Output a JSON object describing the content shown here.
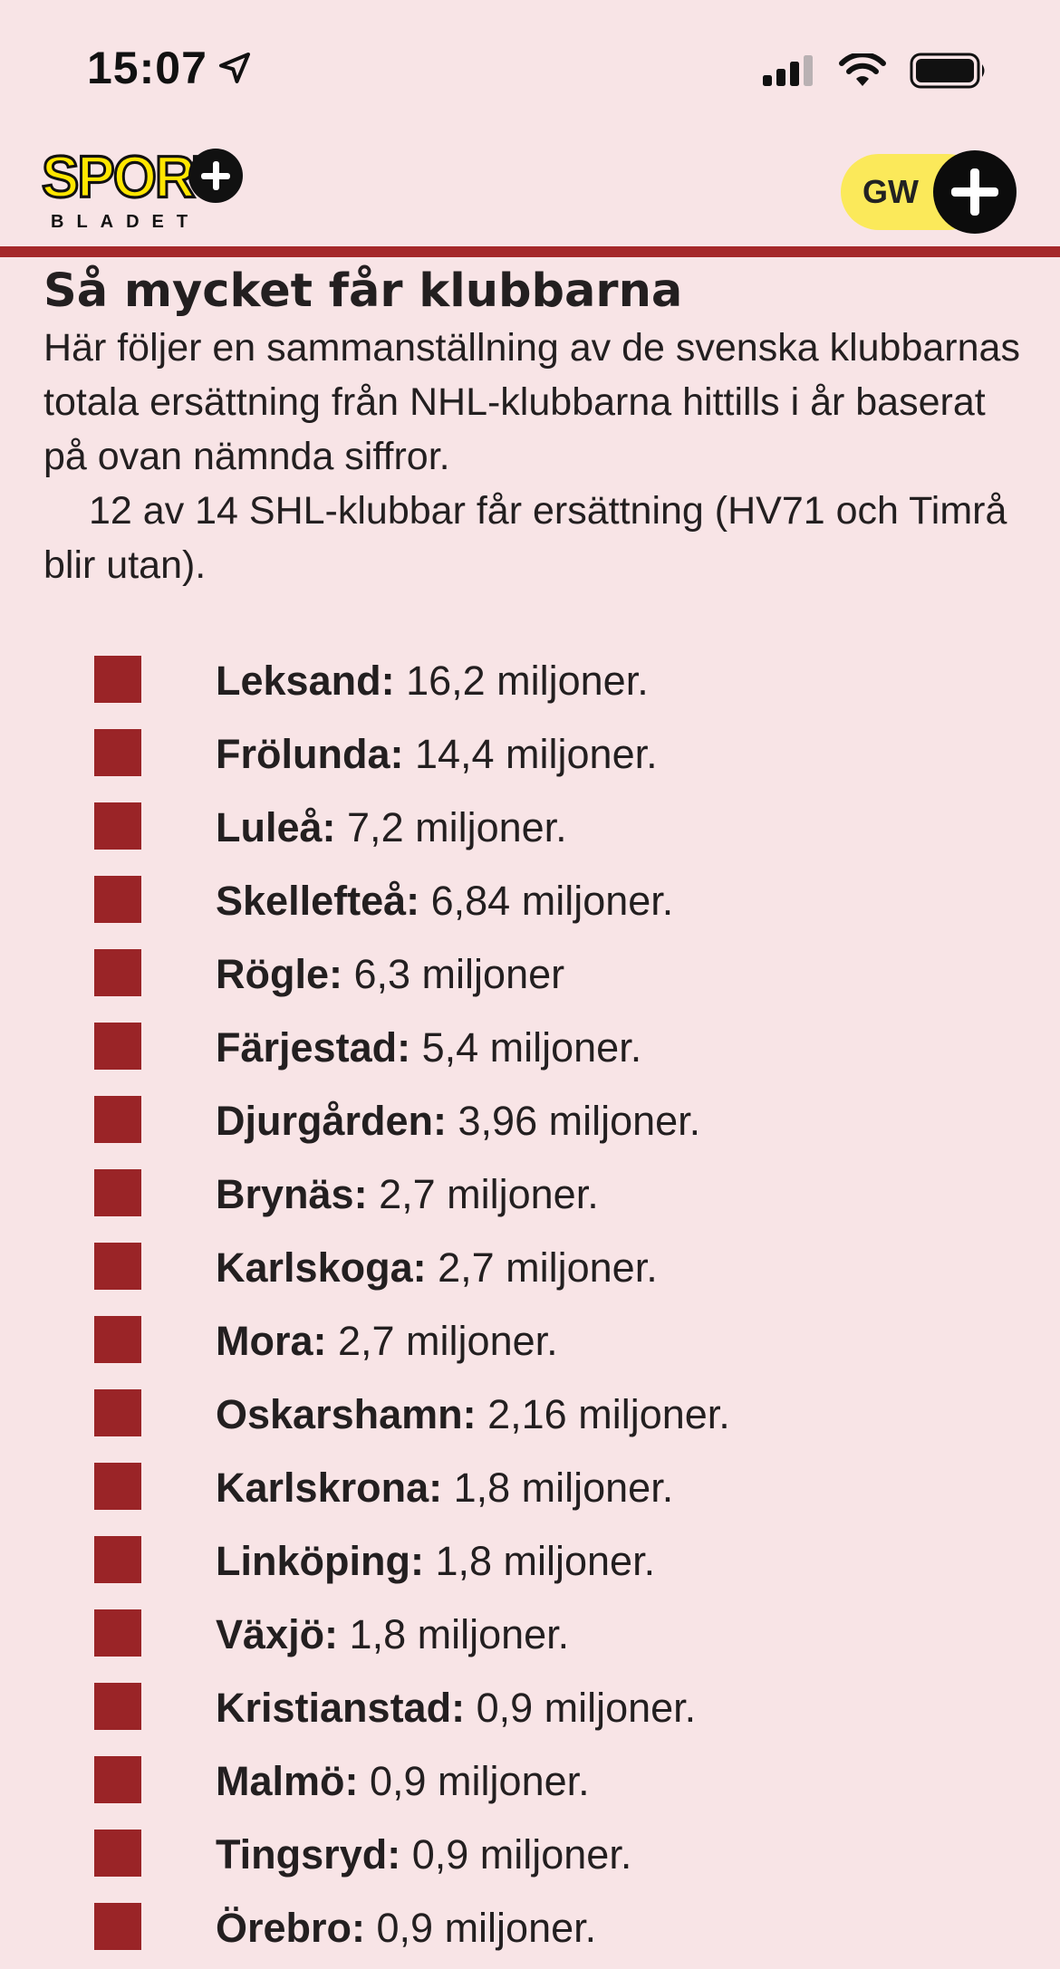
{
  "status_bar": {
    "time": "15:07"
  },
  "header": {
    "logo_top": "SPORT",
    "logo_bottom": "BLADET",
    "account_initials": "GW"
  },
  "article": {
    "title": "Så mycket får klubbarna",
    "intro_paragraph_1": "Här följer en sammanställning av de svenska klubbarnas totala ersättning från NHL-klubbarna hittills i år baserat på ovan nämnda siffror.",
    "intro_paragraph_2": "12 av 14 SHL-klubbar får ersättning (HV71 och Timrå blir utan).",
    "clubs": [
      {
        "name": "Leksand:",
        "amount": " 16,2 miljoner."
      },
      {
        "name": "Frölunda:",
        "amount": " 14,4 miljoner."
      },
      {
        "name": "Luleå:",
        "amount": " 7,2 miljoner."
      },
      {
        "name": "Skellefteå:",
        "amount": " 6,84 miljoner."
      },
      {
        "name": "Rögle:",
        "amount": " 6,3 miljoner"
      },
      {
        "name": "Färjestad:",
        "amount": " 5,4 miljoner."
      },
      {
        "name": "Djurgården:",
        "amount": " 3,96 miljoner."
      },
      {
        "name": "Brynäs:",
        "amount": " 2,7 miljoner."
      },
      {
        "name": "Karlskoga:",
        "amount": " 2,7 miljoner."
      },
      {
        "name": "Mora:",
        "amount": " 2,7 miljoner."
      },
      {
        "name": "Oskarshamn:",
        "amount": " 2,16 miljoner."
      },
      {
        "name": "Karlskrona:",
        "amount": " 1,8 miljoner."
      },
      {
        "name": "Linköping:",
        "amount": " 1,8 miljoner."
      },
      {
        "name": "Växjö:",
        "amount": " 1,8 miljoner."
      },
      {
        "name": "Kristianstad:",
        "amount": " 0,9 miljoner."
      },
      {
        "name": "Malmö:",
        "amount": " 0,9 miljoner."
      },
      {
        "name": "Tingsryd:",
        "amount": " 0,9 miljoner."
      },
      {
        "name": "Örebro:",
        "amount": " 0,9 miljoner."
      }
    ]
  },
  "colors": {
    "page_background": "#f8e4e6",
    "accent_rule": "#a5282a",
    "bullet": "#9a2427",
    "logo_yellow": "#ffe600",
    "account_pill": "#fbe95a"
  },
  "icons": {
    "location": "location-arrow-icon",
    "signal": "cellular-signal-icon",
    "wifi": "wifi-icon",
    "battery": "battery-icon",
    "plus": "plus-icon"
  }
}
